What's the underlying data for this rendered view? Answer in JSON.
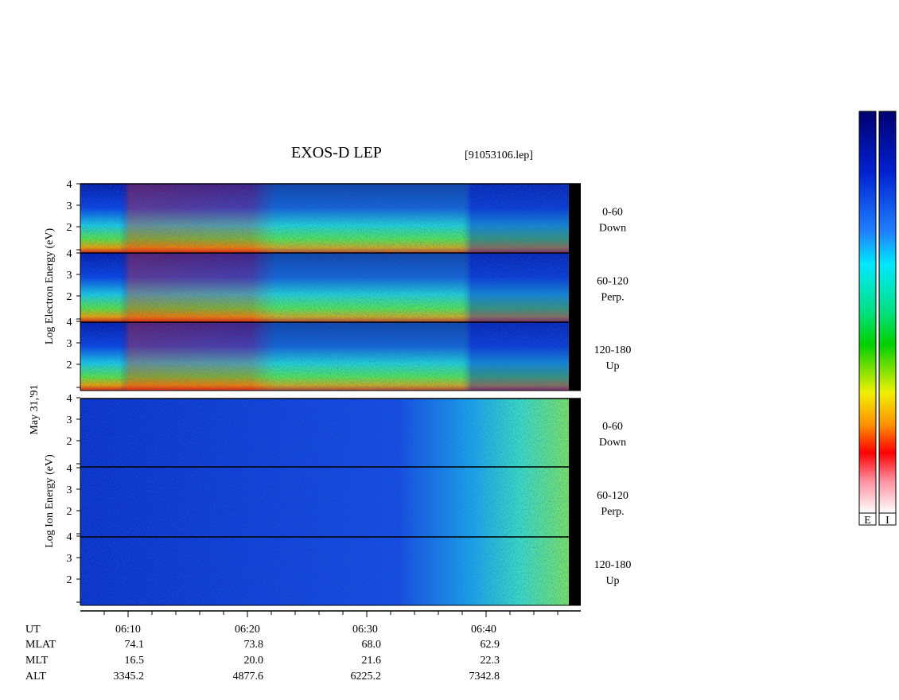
{
  "title": "EXOS-D LEP",
  "file": "[91053106.lep]",
  "date": "May 31,'91",
  "electron_axis_label": "Log Electron Energy (eV)",
  "ion_axis_label": "Log Ion Energy (eV)",
  "energy_ticks": [
    2,
    3,
    4
  ],
  "electron_panels": [
    [
      "0-60",
      "Down"
    ],
    [
      "60-120",
      "Perp."
    ],
    [
      "120-180",
      "Up"
    ]
  ],
  "ion_panels": [
    [
      "0-60",
      "Down"
    ],
    [
      "60-120",
      "Perp."
    ],
    [
      "120-180",
      "Up"
    ]
  ],
  "time_ticks": [
    "06:10",
    "06:20",
    "06:30",
    "06:40"
  ],
  "ephemeris": [
    {
      "label": "UT",
      "values": []
    },
    {
      "label": "MLAT",
      "values": [
        "74.1",
        "73.8",
        "68.0",
        "62.9"
      ]
    },
    {
      "label": "MLT",
      "values": [
        "16.5",
        "20.0",
        "21.6",
        "22.3"
      ]
    },
    {
      "label": "ALT",
      "values": [
        "3345.2",
        "4877.6",
        "6225.2",
        "7342.8"
      ]
    }
  ],
  "colorbar_labels": [
    "E",
    "I"
  ]
}
